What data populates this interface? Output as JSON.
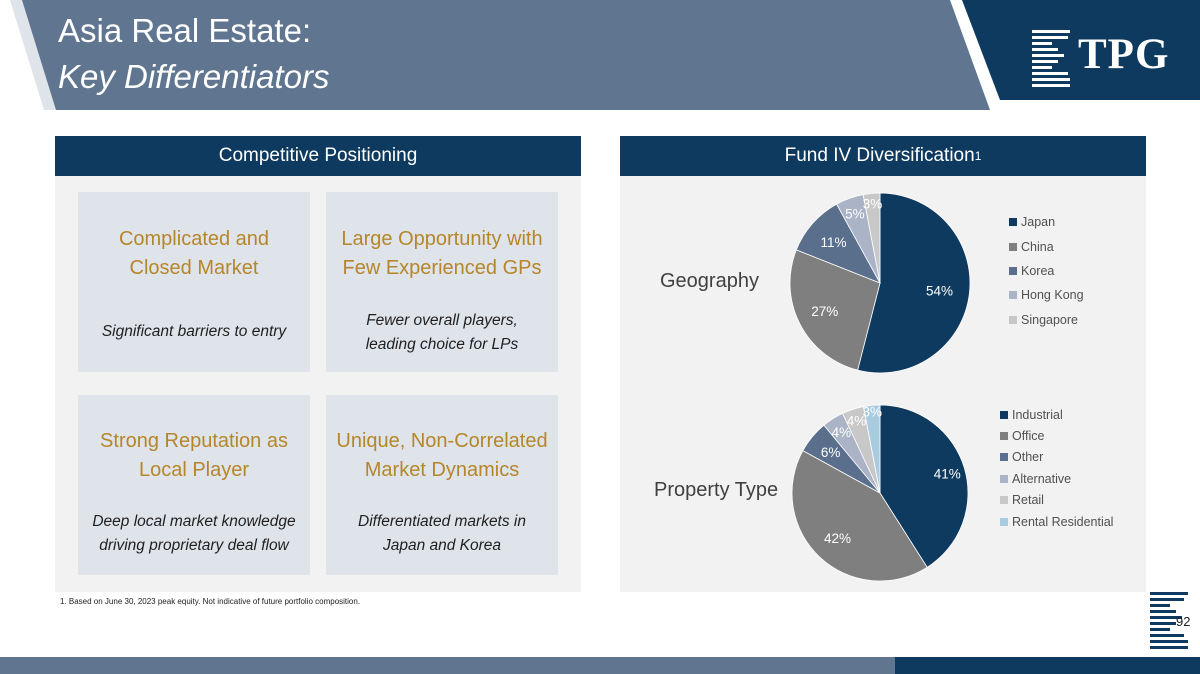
{
  "header": {
    "title_line1": "Asia Real Estate:",
    "title_line2": "Key Differentiators",
    "logo_text": "TPG"
  },
  "left_panel": {
    "title": "Competitive Positioning",
    "cells": [
      {
        "heading": [
          "Complicated and",
          "Closed Market"
        ],
        "body": [
          "Significant barriers to entry"
        ]
      },
      {
        "heading": [
          "Large Opportunity with",
          "Few Experienced GPs"
        ],
        "body": [
          "Fewer overall players,",
          "leading choice for LPs"
        ]
      },
      {
        "heading": [
          "Strong Reputation as",
          "Local Player"
        ],
        "body": [
          "Deep local market knowledge",
          "driving proprietary deal flow"
        ]
      },
      {
        "heading": [
          "Unique, Non-Correlated",
          "Market Dynamics"
        ],
        "body": [
          "Differentiated markets in",
          "Japan and Korea"
        ]
      }
    ]
  },
  "right_panel": {
    "title": "Fund IV Diversification",
    "title_sup": "1"
  },
  "chart_data": [
    {
      "type": "pie",
      "label": "Geography",
      "categories": [
        "Japan",
        "China",
        "Korea",
        "Hong Kong",
        "Singapore"
      ],
      "values": [
        54,
        27,
        11,
        5,
        3
      ],
      "data_labels": [
        "54%",
        "27%",
        "11%",
        "5%",
        "3%"
      ],
      "colors": [
        "#0f3a5f",
        "#7f7f7f",
        "#5a6f8c",
        "#aab4c6",
        "#c8c8c8"
      ],
      "legend": "right"
    },
    {
      "type": "pie",
      "label": "Property Type",
      "categories": [
        "Industrial",
        "Office",
        "Other",
        "Alternative",
        "Retail",
        "Rental Residential"
      ],
      "values": [
        41,
        42,
        6,
        4,
        4,
        3
      ],
      "data_labels": [
        "41%",
        "42%",
        "6%",
        "4%",
        "4%",
        "3%"
      ],
      "colors": [
        "#0f3a5f",
        "#7f7f7f",
        "#5a6f8c",
        "#aab4c6",
        "#c8c8c8",
        "#a9cbe0"
      ],
      "legend": "right"
    }
  ],
  "footnote": "1.  Based on June 30, 2023 peak equity. Not indicative of future portfolio composition.",
  "page_number": "92",
  "colors": {
    "header_slate": "#5f7590",
    "header_navy": "#0f3a5f",
    "panel_bar": "#0f3a5f",
    "accent_gold": "#b5862a",
    "cell_bg": "#dfe3ea"
  }
}
